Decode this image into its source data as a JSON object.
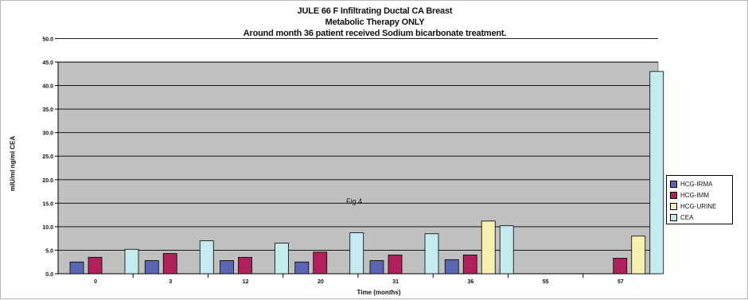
{
  "chart_data": {
    "type": "bar",
    "title": "JULE 66 F Infiltrating Ductal CA Breast",
    "subtitle": "Metabolic Therapy ONLY",
    "subtitle2": "Around month 36 patient received Sodium bicarbonate treatment.",
    "xlabel": "Time (months)",
    "ylabel": "mIU/ml ng/ml CEA",
    "annotation": "Fig 4",
    "ylim": [
      0,
      45
    ],
    "yticks": [
      "0.0",
      "5.0",
      "10.0",
      "15.0",
      "20.0",
      "25.0",
      "30.0",
      "35.0",
      "40.0",
      "45.0",
      "50.0"
    ],
    "categories": [
      "0",
      "3",
      "12",
      "20",
      "31",
      "36",
      "55",
      "57"
    ],
    "series": [
      {
        "name": "HCG-IRMA",
        "color": "#5a66b4",
        "values": [
          2.5,
          2.8,
          2.8,
          2.5,
          2.8,
          3.0,
          null,
          null
        ]
      },
      {
        "name": "HCG-IMM",
        "color": "#b0205a",
        "values": [
          3.5,
          4.3,
          3.5,
          4.6,
          4.0,
          4.0,
          null,
          3.3
        ]
      },
      {
        "name": "HCG-URINE",
        "color": "#f7f0b0",
        "values": [
          null,
          null,
          null,
          null,
          null,
          11.2,
          null,
          8.0
        ]
      },
      {
        "name": "CEA",
        "color": "#c4ecf0",
        "values": [
          5.2,
          7.0,
          6.5,
          8.7,
          8.5,
          10.2,
          null,
          43.0
        ]
      }
    ],
    "grid": true,
    "legend_position": "right"
  }
}
